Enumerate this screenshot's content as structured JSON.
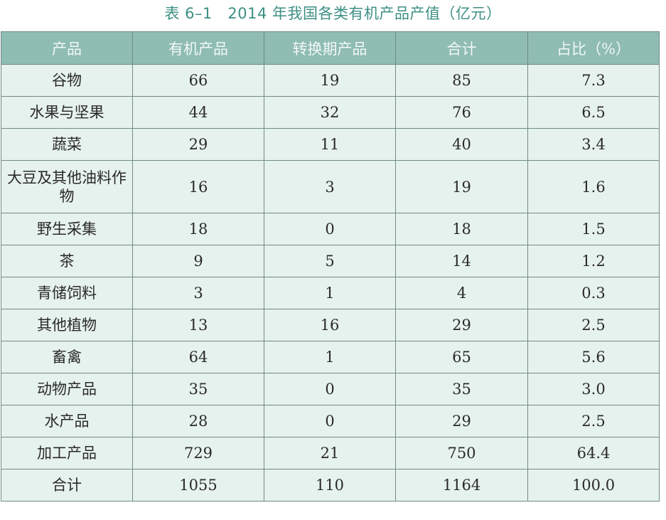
{
  "caption": "表 6–1　2014 年我国各类有机产品产值（亿元）",
  "table": {
    "headers": [
      "产品",
      "有机产品",
      "转换期产品",
      "合计",
      "占比（%）"
    ],
    "rows": [
      {
        "product": "谷物",
        "organic": "66",
        "conversion": "19",
        "total": "85",
        "share": "7.3"
      },
      {
        "product": "水果与坚果",
        "organic": "44",
        "conversion": "32",
        "total": "76",
        "share": "6.5"
      },
      {
        "product": "蔬菜",
        "organic": "29",
        "conversion": "11",
        "total": "40",
        "share": "3.4"
      },
      {
        "product": "大豆及其他油料作物",
        "organic": "16",
        "conversion": "3",
        "total": "19",
        "share": "1.6"
      },
      {
        "product": "野生采集",
        "organic": "18",
        "conversion": "0",
        "total": "18",
        "share": "1.5"
      },
      {
        "product": "茶",
        "organic": "9",
        "conversion": "5",
        "total": "14",
        "share": "1.2"
      },
      {
        "product": "青储饲料",
        "organic": "3",
        "conversion": "1",
        "total": "4",
        "share": "0.3"
      },
      {
        "product": "其他植物",
        "organic": "13",
        "conversion": "16",
        "total": "29",
        "share": "2.5"
      },
      {
        "product": "畜禽",
        "organic": "64",
        "conversion": "1",
        "total": "65",
        "share": "5.6"
      },
      {
        "product": "动物产品",
        "organic": "35",
        "conversion": "0",
        "total": "35",
        "share": "3.0"
      },
      {
        "product": "水产品",
        "organic": "28",
        "conversion": "0",
        "total": "29",
        "share": "2.5"
      },
      {
        "product": "加工产品",
        "organic": "729",
        "conversion": "21",
        "total": "750",
        "share": "64.4"
      },
      {
        "product": "合计",
        "organic": "1055",
        "conversion": "110",
        "total": "1164",
        "share": "100.0"
      }
    ]
  }
}
